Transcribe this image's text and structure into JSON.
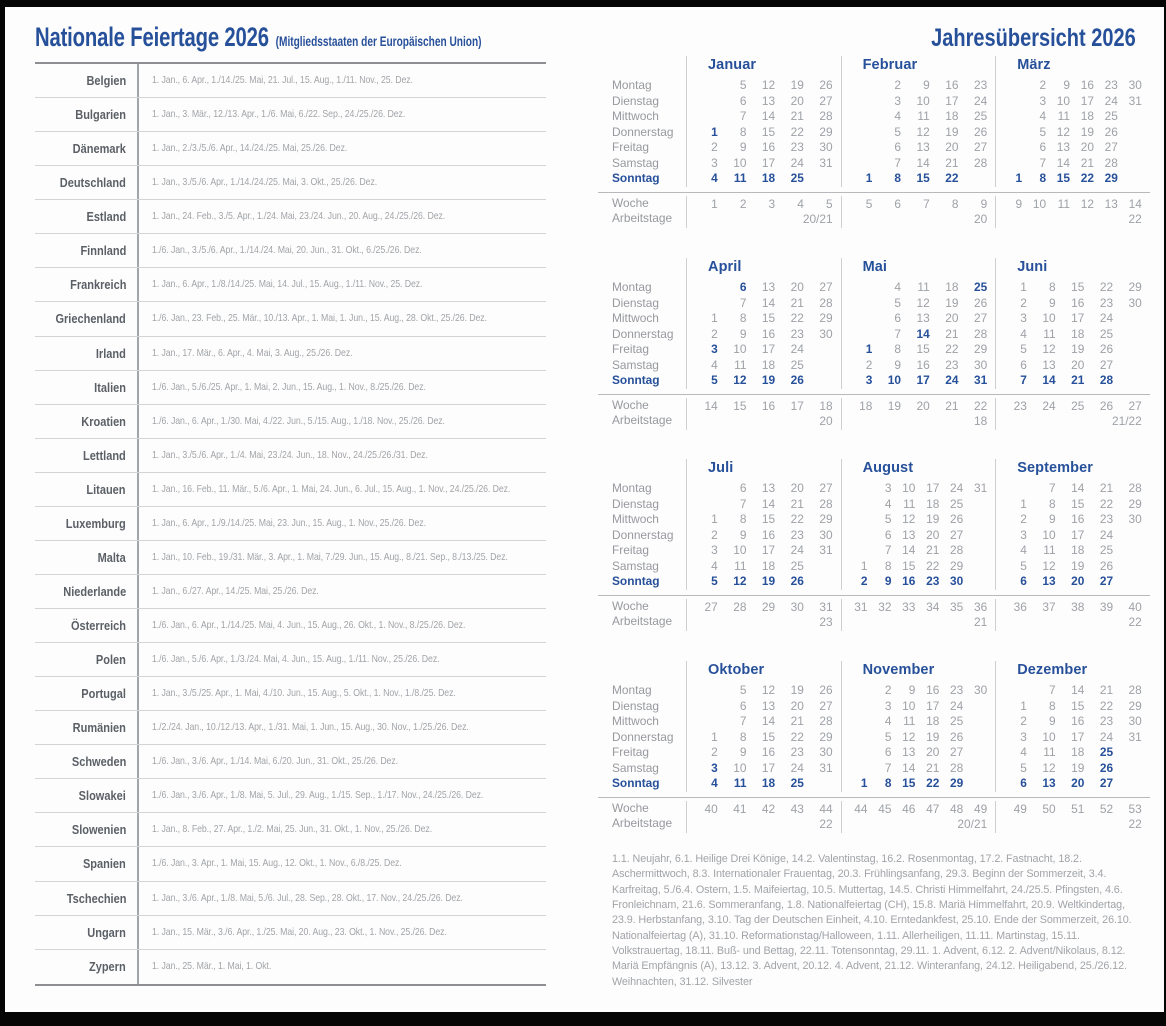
{
  "colors": {
    "accent_blue": "#27509a",
    "text_gray": "#9ea1a6",
    "label_gray": "#97999e",
    "country_gray": "#5b6067",
    "rule_dark": "#8d8f92",
    "rule_light": "#cdcfd1",
    "frame_black": "#050505"
  },
  "left": {
    "title": "Nationale Feiertage 2026",
    "subtitle": "(Mitgliedsstaaten der Europäischen Union)"
  },
  "holidays_table": {
    "rows": [
      {
        "country": "Belgien",
        "dates": "1. Jan., 6. Apr., 1./14./25. Mai, 21. Jul., 15. Aug., 1./11. Nov., 25. Dez."
      },
      {
        "country": "Bulgarien",
        "dates": "1. Jan., 3. Mär., 12./13. Apr., 1./6. Mai, 6./22. Sep., 24./25./26. Dez."
      },
      {
        "country": "Dänemark",
        "dates": "1. Jan., 2./3./5./6. Apr., 14./24./25. Mai, 25./26. Dez."
      },
      {
        "country": "Deutschland",
        "dates": "1. Jan., 3./5./6. Apr., 1./14./24./25. Mai, 3. Okt., 25./26. Dez."
      },
      {
        "country": "Estland",
        "dates": "1. Jan., 24. Feb., 3./5. Apr., 1./24. Mai, 23./24. Jun., 20. Aug., 24./25./26. Dez."
      },
      {
        "country": "Finnland",
        "dates": "1./6. Jan., 3./5./6. Apr., 1./14./24. Mai, 20. Jun., 31. Okt., 6./25./26. Dez."
      },
      {
        "country": "Frankreich",
        "dates": "1. Jan., 6. Apr., 1./8./14./25. Mai, 14. Jul., 15. Aug., 1./11. Nov., 25. Dez."
      },
      {
        "country": "Griechenland",
        "dates": "1./6. Jan., 23. Feb., 25. Mär., 10./13. Apr., 1. Mai, 1. Jun., 15. Aug., 28. Okt., 25./26. Dez."
      },
      {
        "country": "Irland",
        "dates": "1. Jan., 17. Mär., 6. Apr., 4. Mai, 3. Aug., 25./26. Dez."
      },
      {
        "country": "Italien",
        "dates": "1./6. Jan., 5./6./25. Apr., 1. Mai, 2. Jun., 15. Aug., 1. Nov., 8./25./26. Dez."
      },
      {
        "country": "Kroatien",
        "dates": "1./6. Jan., 6. Apr., 1./30. Mai, 4./22. Jun., 5./15. Aug., 1./18. Nov., 25./26. Dez."
      },
      {
        "country": "Lettland",
        "dates": "1. Jan., 3./5./6. Apr., 1./4. Mai, 23./24. Jun., 18. Nov., 24./25./26./31. Dez."
      },
      {
        "country": "Litauen",
        "dates": "1. Jan., 16. Feb., 11. Mär., 5./6. Apr., 1. Mai, 24. Jun., 6. Jul., 15. Aug., 1. Nov., 24./25./26. Dez."
      },
      {
        "country": "Luxemburg",
        "dates": "1. Jan., 6. Apr., 1./9./14./25. Mai, 23. Jun., 15. Aug., 1. Nov., 25./26. Dez."
      },
      {
        "country": "Malta",
        "dates": "1. Jan., 10. Feb., 19./31. Mär., 3. Apr., 1. Mai, 7./29. Jun., 15. Aug., 8./21. Sep., 8./13./25. Dez."
      },
      {
        "country": "Niederlande",
        "dates": "1. Jan., 6./27. Apr., 14./25. Mai, 25./26. Dez."
      },
      {
        "country": "Österreich",
        "dates": "1./6. Jan., 6. Apr., 1./14./25. Mai, 4. Jun., 15. Aug., 26. Okt., 1. Nov., 8./25./26. Dez."
      },
      {
        "country": "Polen",
        "dates": "1./6. Jan., 5./6. Apr., 1./3./24. Mai, 4. Jun., 15. Aug., 1./11. Nov., 25./26. Dez."
      },
      {
        "country": "Portugal",
        "dates": "1. Jan., 3./5./25. Apr., 1. Mai, 4./10. Jun., 15. Aug., 5. Okt., 1. Nov., 1./8./25. Dez."
      },
      {
        "country": "Rumänien",
        "dates": "1./2./24. Jan., 10./12./13. Apr., 1./31. Mai, 1. Jun., 15. Aug., 30. Nov., 1./25./26. Dez."
      },
      {
        "country": "Schweden",
        "dates": "1./6. Jan., 3./6. Apr., 1./14. Mai, 6./20. Jun., 31. Okt., 25./26. Dez."
      },
      {
        "country": "Slowakei",
        "dates": "1./6. Jan., 3./6. Apr., 1./8. Mai, 5. Jul., 29. Aug., 1./15. Sep., 1./17. Nov., 24./25./26. Dez."
      },
      {
        "country": "Slowenien",
        "dates": "1. Jan., 8. Feb., 27. Apr., 1./2. Mai, 25. Jun., 31. Okt., 1. Nov., 25./26. Dez."
      },
      {
        "country": "Spanien",
        "dates": "1./6. Jan., 3. Apr., 1. Mai, 15. Aug., 12. Okt., 1. Nov., 6./8./25. Dez."
      },
      {
        "country": "Tschechien",
        "dates": "1. Jan., 3./6. Apr., 1./8. Mai, 5./6. Jul., 28. Sep., 28. Okt., 17. Nov., 24./25./26. Dez."
      },
      {
        "country": "Ungarn",
        "dates": "1. Jan., 15. Mär., 3./6. Apr., 1./25. Mai, 20. Aug., 23. Okt., 1. Nov., 25./26. Dez."
      },
      {
        "country": "Zypern",
        "dates": "1. Jan., 25. Mär., 1. Mai, 1. Okt."
      }
    ]
  },
  "right": {
    "title": "Jahresübersicht 2026",
    "legend": "1.1. Neujahr, 6.1. Heilige Drei Könige, 14.2. Valentinstag, 16.2. Rosenmontag, 17.2. Fastnacht, 18.2. Aschermittwoch, 8.3. Internationaler Frauentag, 20.3. Frühlingsanfang, 29.3. Beginn der Sommerzeit, 3.4. Karfreitag, 5./6.4. Ostern, 1.5. Maifeiertag, 10.5. Muttertag, 14.5. Christi Himmelfahrt, 24./25.5. Pfingsten, 4.6. Fronleichnam, 21.6. Sommeranfang, 1.8. Nationalfeiertag (CH), 15.8. Mariä Himmelfahrt, 20.9. Weltkindertag, 23.9. Herbstanfang, 3.10. Tag der Deutschen Einheit, 4.10. Erntedankfest, 25.10. Ende der Sommerzeit, 26.10. Nationalfeiertag (A), 31.10. Reformationstag/Halloween, 1.11. Allerheiligen, 11.11. Martinstag, 15.11. Volkstrauertag, 18.11. Buß- und Bettag, 22.11. Totensonntag, 29.11. 1. Advent, 6.12. 2. Advent/Nikolaus, 8.12. Mariä Empfängnis (A), 13.12. 3. Advent, 20.12. 4. Advent, 21.12. Winteranfang, 24.12. Heiligabend, 25./26.12. Weihnachten, 31.12. Silvester"
  },
  "calendar": {
    "weekday_labels": [
      "Montag",
      "Dienstag",
      "Mittwoch",
      "Donnerstag",
      "Freitag",
      "Samstag",
      "Sonntag"
    ],
    "week_label": "Woche",
    "workdays_label": "Arbeitstage",
    "months": [
      {
        "name": "Januar",
        "weeks": [
          "1",
          "2",
          "3",
          "4",
          "5"
        ],
        "workdays": "20/21",
        "days": [
          [
            "",
            "5",
            "12",
            "19",
            "26"
          ],
          [
            "",
            "6",
            "13",
            "20",
            "27"
          ],
          [
            "",
            "7",
            "14",
            "21",
            "28"
          ],
          [
            {
              "d": "1",
              "h": true
            },
            "8",
            "15",
            "22",
            "29"
          ],
          [
            "2",
            "9",
            "16",
            "23",
            "30"
          ],
          [
            "3",
            "10",
            "17",
            "24",
            "31"
          ],
          [
            "4",
            "11",
            "18",
            "25",
            ""
          ]
        ]
      },
      {
        "name": "Februar",
        "weeks": [
          "5",
          "6",
          "7",
          "8",
          "9"
        ],
        "workdays": "20",
        "days": [
          [
            "",
            "2",
            "9",
            "16",
            "23"
          ],
          [
            "",
            "3",
            "10",
            "17",
            "24"
          ],
          [
            "",
            "4",
            "11",
            "18",
            "25"
          ],
          [
            "",
            "5",
            "12",
            "19",
            "26"
          ],
          [
            "",
            "6",
            "13",
            "20",
            "27"
          ],
          [
            "",
            "7",
            "14",
            "21",
            "28"
          ],
          [
            "1",
            "8",
            "15",
            "22",
            ""
          ]
        ]
      },
      {
        "name": "März",
        "weeks": [
          "9",
          "10",
          "11",
          "12",
          "13",
          "14"
        ],
        "workdays": "22",
        "days": [
          [
            "",
            "2",
            "9",
            "16",
            "23",
            "30"
          ],
          [
            "",
            "3",
            "10",
            "17",
            "24",
            "31"
          ],
          [
            "",
            "4",
            "11",
            "18",
            "25",
            ""
          ],
          [
            "",
            "5",
            "12",
            "19",
            "26",
            ""
          ],
          [
            "",
            "6",
            "13",
            "20",
            "27",
            ""
          ],
          [
            "",
            "7",
            "14",
            "21",
            "28",
            ""
          ],
          [
            "1",
            "8",
            "15",
            "22",
            "29",
            ""
          ]
        ]
      },
      {
        "name": "April",
        "weeks": [
          "14",
          "15",
          "16",
          "17",
          "18"
        ],
        "workdays": "20",
        "days": [
          [
            "",
            {
              "d": "6",
              "h": true
            },
            "13",
            "20",
            "27"
          ],
          [
            "",
            "7",
            "14",
            "21",
            "28"
          ],
          [
            "1",
            "8",
            "15",
            "22",
            "29"
          ],
          [
            "2",
            "9",
            "16",
            "23",
            "30"
          ],
          [
            {
              "d": "3",
              "h": true
            },
            "10",
            "17",
            "24",
            ""
          ],
          [
            "4",
            "11",
            "18",
            "25",
            ""
          ],
          [
            "5",
            "12",
            "19",
            "26",
            ""
          ]
        ]
      },
      {
        "name": "Mai",
        "weeks": [
          "18",
          "19",
          "20",
          "21",
          "22"
        ],
        "workdays": "18",
        "days": [
          [
            "",
            "4",
            "11",
            "18",
            {
              "d": "25",
              "h": true
            }
          ],
          [
            "",
            "5",
            "12",
            "19",
            "26"
          ],
          [
            "",
            "6",
            "13",
            "20",
            "27"
          ],
          [
            "",
            "7",
            {
              "d": "14",
              "h": true
            },
            "21",
            "28"
          ],
          [
            {
              "d": "1",
              "h": true
            },
            "8",
            "15",
            "22",
            "29"
          ],
          [
            "2",
            "9",
            "16",
            "23",
            "30"
          ],
          [
            "3",
            "10",
            "17",
            "24",
            "31"
          ]
        ]
      },
      {
        "name": "Juni",
        "weeks": [
          "23",
          "24",
          "25",
          "26",
          "27"
        ],
        "workdays": "21/22",
        "days": [
          [
            "1",
            "8",
            "15",
            "22",
            "29"
          ],
          [
            "2",
            "9",
            "16",
            "23",
            "30"
          ],
          [
            "3",
            "10",
            "17",
            "24",
            ""
          ],
          [
            "4",
            "11",
            "18",
            "25",
            ""
          ],
          [
            "5",
            "12",
            "19",
            "26",
            ""
          ],
          [
            "6",
            "13",
            "20",
            "27",
            ""
          ],
          [
            "7",
            "14",
            "21",
            "28",
            ""
          ]
        ]
      },
      {
        "name": "Juli",
        "weeks": [
          "27",
          "28",
          "29",
          "30",
          "31"
        ],
        "workdays": "23",
        "days": [
          [
            "",
            "6",
            "13",
            "20",
            "27"
          ],
          [
            "",
            "7",
            "14",
            "21",
            "28"
          ],
          [
            "1",
            "8",
            "15",
            "22",
            "29"
          ],
          [
            "2",
            "9",
            "16",
            "23",
            "30"
          ],
          [
            "3",
            "10",
            "17",
            "24",
            "31"
          ],
          [
            "4",
            "11",
            "18",
            "25",
            ""
          ],
          [
            "5",
            "12",
            "19",
            "26",
            ""
          ]
        ]
      },
      {
        "name": "August",
        "weeks": [
          "31",
          "32",
          "33",
          "34",
          "35",
          "36"
        ],
        "workdays": "21",
        "days": [
          [
            "",
            "3",
            "10",
            "17",
            "24",
            "31"
          ],
          [
            "",
            "4",
            "11",
            "18",
            "25",
            ""
          ],
          [
            "",
            "5",
            "12",
            "19",
            "26",
            ""
          ],
          [
            "",
            "6",
            "13",
            "20",
            "27",
            ""
          ],
          [
            "",
            "7",
            "14",
            "21",
            "28",
            ""
          ],
          [
            "1",
            "8",
            "15",
            "22",
            "29",
            ""
          ],
          [
            "2",
            "9",
            "16",
            "23",
            "30",
            ""
          ]
        ]
      },
      {
        "name": "September",
        "weeks": [
          "36",
          "37",
          "38",
          "39",
          "40"
        ],
        "workdays": "22",
        "days": [
          [
            "",
            "7",
            "14",
            "21",
            "28"
          ],
          [
            "1",
            "8",
            "15",
            "22",
            "29"
          ],
          [
            "2",
            "9",
            "16",
            "23",
            "30"
          ],
          [
            "3",
            "10",
            "17",
            "24",
            ""
          ],
          [
            "4",
            "11",
            "18",
            "25",
            ""
          ],
          [
            "5",
            "12",
            "19",
            "26",
            ""
          ],
          [
            "6",
            "13",
            "20",
            "27",
            ""
          ]
        ]
      },
      {
        "name": "Oktober",
        "weeks": [
          "40",
          "41",
          "42",
          "43",
          "44"
        ],
        "workdays": "22",
        "days": [
          [
            "",
            "5",
            "12",
            "19",
            "26"
          ],
          [
            "",
            "6",
            "13",
            "20",
            "27"
          ],
          [
            "",
            "7",
            "14",
            "21",
            "28"
          ],
          [
            "1",
            "8",
            "15",
            "22",
            "29"
          ],
          [
            "2",
            "9",
            "16",
            "23",
            "30"
          ],
          [
            {
              "d": "3",
              "h": true
            },
            "10",
            "17",
            "24",
            "31"
          ],
          [
            "4",
            "11",
            "18",
            "25",
            ""
          ]
        ]
      },
      {
        "name": "November",
        "weeks": [
          "44",
          "45",
          "46",
          "47",
          "48",
          "49"
        ],
        "workdays": "20/21",
        "days": [
          [
            "",
            "2",
            "9",
            "16",
            "23",
            "30"
          ],
          [
            "",
            "3",
            "10",
            "17",
            "24",
            ""
          ],
          [
            "",
            "4",
            "11",
            "18",
            "25",
            ""
          ],
          [
            "",
            "5",
            "12",
            "19",
            "26",
            ""
          ],
          [
            "",
            "6",
            "13",
            "20",
            "27",
            ""
          ],
          [
            "",
            "7",
            "14",
            "21",
            "28",
            ""
          ],
          [
            "1",
            "8",
            "15",
            "22",
            "29",
            ""
          ]
        ]
      },
      {
        "name": "Dezember",
        "weeks": [
          "49",
          "50",
          "51",
          "52",
          "53"
        ],
        "workdays": "22",
        "days": [
          [
            "",
            "7",
            "14",
            "21",
            "28"
          ],
          [
            "1",
            "8",
            "15",
            "22",
            "29"
          ],
          [
            "2",
            "9",
            "16",
            "23",
            "30"
          ],
          [
            "3",
            "10",
            "17",
            "24",
            "31"
          ],
          [
            "4",
            "11",
            "18",
            {
              "d": "25",
              "h": true
            },
            ""
          ],
          [
            "5",
            "12",
            "19",
            {
              "d": "26",
              "h": true
            },
            ""
          ],
          [
            "6",
            "13",
            "20",
            "27",
            ""
          ]
        ]
      }
    ]
  }
}
